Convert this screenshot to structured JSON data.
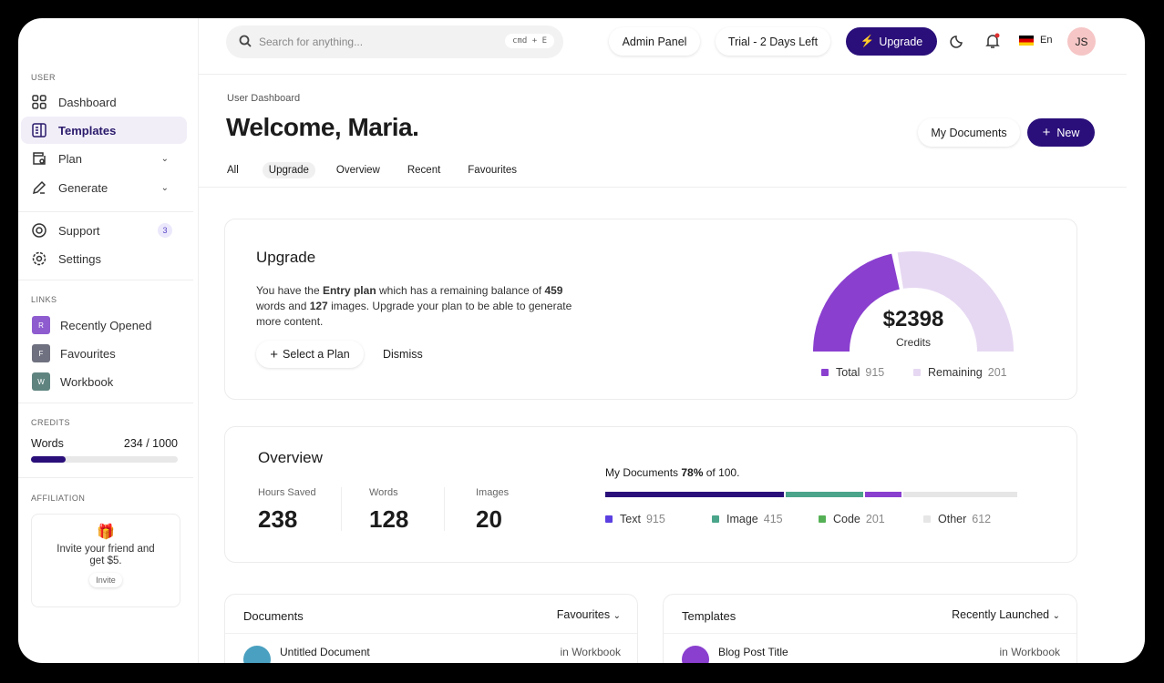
{
  "sidebar": {
    "user_label": "USER",
    "items": [
      {
        "label": "Dashboard",
        "icon": "grid-icon"
      },
      {
        "label": "Templates",
        "icon": "document-icon"
      },
      {
        "label": "Plan",
        "icon": "wallet-icon"
      },
      {
        "label": "Generate",
        "icon": "pencil-icon"
      },
      {
        "label": "Support",
        "icon": "lifebuoy-icon",
        "badge": "3"
      },
      {
        "label": "Settings",
        "icon": "gear-icon"
      }
    ],
    "links_label": "LINKS",
    "links": [
      {
        "label": "Recently Opened",
        "letter": "R",
        "color": "#8e5ccf"
      },
      {
        "label": "Favourites",
        "letter": "F",
        "color": "#6f7180"
      },
      {
        "label": "Workbook",
        "letter": "W",
        "color": "#5f8480"
      }
    ],
    "credits_label": "CREDITS",
    "credits": {
      "label": "Words",
      "value": "234 / 1000",
      "used": 234,
      "total": 1000
    },
    "affiliation_label": "AFFILIATION",
    "invite": {
      "text": "Invite your friend and get $5.",
      "button": "Invite"
    }
  },
  "topbar": {
    "search_placeholder": "Search for anything...",
    "shortcut": "cmd + E",
    "admin": "Admin Panel",
    "trial": "Trial - 2 Days Left",
    "upgrade": "Upgrade",
    "lang": "En",
    "avatar": "JS"
  },
  "header": {
    "breadcrumb": "User Dashboard",
    "title": "Welcome, Maria.",
    "my_documents": "My Documents",
    "new": "New",
    "tabs": [
      "All",
      "Upgrade",
      "Overview",
      "Recent",
      "Favourites"
    ],
    "active_tab": "Upgrade"
  },
  "upgrade": {
    "title": "Upgrade",
    "t1": "You have the ",
    "plan": "Entry plan",
    "t2": " which has a remaining balance of ",
    "words": "459",
    "t3": " words and ",
    "images": "127",
    "t4": " images. Upgrade your plan to be able to generate more content.",
    "select": "Select a Plan",
    "dismiss": "Dismiss"
  },
  "chart_data": {
    "type": "pie",
    "style": "semi-donut",
    "center_value": "$2398",
    "center_label": "Credits",
    "series": [
      {
        "name": "Total",
        "value": 915,
        "color": "#8a3fcf"
      },
      {
        "name": "Remaining",
        "value": 201,
        "color": "#e6d8f2"
      }
    ]
  },
  "overview": {
    "title": "Overview",
    "stats": [
      {
        "label": "Hours Saved",
        "value": "238"
      },
      {
        "label": "Words",
        "value": "128"
      },
      {
        "label": "Images",
        "value": "20"
      }
    ],
    "docs_prefix": "My Documents ",
    "docs_pct": "78%",
    "docs_suffix": " of 100.",
    "bar": [
      {
        "name": "Text",
        "value": 915,
        "color": "#2a0f7a",
        "legend_color": "#5b3fe0",
        "pct": 44
      },
      {
        "name": "Image",
        "value": 415,
        "color": "#4aa58a",
        "pct": 19
      },
      {
        "name": "Code",
        "value": 201,
        "color": "#8a3fcf",
        "legend_color": "#55b055",
        "pct": 9
      },
      {
        "name": "Other",
        "value": 612,
        "color": "#e6e6e6",
        "pct": 28
      }
    ]
  },
  "documents": {
    "title": "Documents",
    "filter": "Favourites",
    "row": {
      "name": "Untitled Document",
      "location": "in Workbook",
      "color": "#4aa0c0"
    }
  },
  "templates": {
    "title": "Templates",
    "filter": "Recently Launched",
    "row": {
      "name": "Blog Post Title",
      "location": "in Workbook",
      "color": "#8a3fcf"
    }
  }
}
